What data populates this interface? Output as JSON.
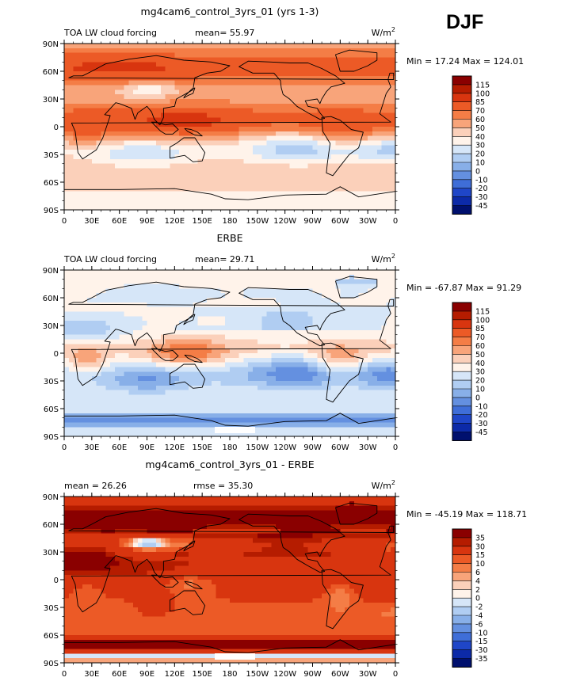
{
  "season": "DJF",
  "chart_data": [
    {
      "type": "heatmap",
      "title": "mg4cam6_control_3yrs_01 (yrs 1-3)",
      "left_label": "TOA LW cloud forcing",
      "center_label": "mean=  55.97",
      "units_label": "W/m2",
      "stats_label": "Min =  17.24 Max = 124.01",
      "mean": 55.97,
      "min": 17.24,
      "max": 124.01,
      "x_ticks": [
        "0",
        "30E",
        "60E",
        "90E",
        "120E",
        "150E",
        "180",
        "150W",
        "120W",
        "90W",
        "60W",
        "30W",
        "0"
      ],
      "y_ticks": [
        "90N",
        "60N",
        "30N",
        "0",
        "30S",
        "60S",
        "90S"
      ],
      "legend_levels": [
        "115",
        "100",
        "85",
        "70",
        "60",
        "50",
        "40",
        "30",
        "20",
        "10",
        "0",
        "-10",
        "-20",
        "-30",
        "-45"
      ],
      "legend_colors": [
        "#8a0000",
        "#b51c00",
        "#d8350f",
        "#ec5a26",
        "#f47d46",
        "#f8a47a",
        "#fbd0ba",
        "#fff3ea",
        "#d6e6f8",
        "#b0cdf2",
        "#88afe8",
        "#6490e0",
        "#3f6ed8",
        "#1f46c8",
        "#0c2aa8",
        "#00106e"
      ],
      "blend": 0,
      "base_value": 55.97
    },
    {
      "type": "heatmap",
      "title": "ERBE",
      "left_label": "TOA LW cloud forcing",
      "center_label": "mean=  29.71",
      "units_label": "W/m2",
      "stats_label": "Min = -67.87 Max =  91.29",
      "mean": 29.71,
      "min": -67.87,
      "max": 91.29,
      "x_ticks": [
        "0",
        "30E",
        "60E",
        "90E",
        "120E",
        "150E",
        "180",
        "150W",
        "120W",
        "90W",
        "60W",
        "30W",
        "0"
      ],
      "y_ticks": [
        "90N",
        "60N",
        "30N",
        "0",
        "30S",
        "60S",
        "90S"
      ],
      "legend_levels": [
        "115",
        "100",
        "85",
        "70",
        "60",
        "50",
        "40",
        "30",
        "20",
        "10",
        "0",
        "-10",
        "-20",
        "-30",
        "-45"
      ],
      "legend_colors": [
        "#8a0000",
        "#b51c00",
        "#d8350f",
        "#ec5a26",
        "#f47d46",
        "#f8a47a",
        "#fbd0ba",
        "#fff3ea",
        "#d6e6f8",
        "#b0cdf2",
        "#88afe8",
        "#6490e0",
        "#3f6ed8",
        "#1f46c8",
        "#0c2aa8",
        "#00106e"
      ],
      "blend": 1,
      "base_value": 29.71
    },
    {
      "type": "heatmap",
      "title": "mg4cam6_control_3yrs_01 - ERBE",
      "left_label": "mean =  26.26",
      "center_label": "rmse =  35.30",
      "units_label": "W/m2",
      "stats_label": "Min = -45.19 Max = 118.71",
      "mean": 26.26,
      "rmse": 35.3,
      "min": -45.19,
      "max": 118.71,
      "x_ticks": [
        "0",
        "30E",
        "60E",
        "90E",
        "120E",
        "150E",
        "180",
        "150W",
        "120W",
        "90W",
        "60W",
        "30W",
        "0"
      ],
      "y_ticks": [
        "90N",
        "60N",
        "30N",
        "0",
        "30S",
        "60S",
        "90S"
      ],
      "legend_levels": [
        "35",
        "30",
        "15",
        "10",
        "6",
        "4",
        "2",
        "0",
        "-2",
        "-4",
        "-6",
        "-10",
        "-15",
        "-30",
        "-35"
      ],
      "legend_colors": [
        "#8a0000",
        "#b51c00",
        "#d8350f",
        "#ec5a26",
        "#f47d46",
        "#f8a47a",
        "#fbd0ba",
        "#fff3ea",
        "#d6e6f8",
        "#b0cdf2",
        "#88afe8",
        "#6490e0",
        "#3f6ed8",
        "#1f46c8",
        "#0c2aa8",
        "#00106e"
      ],
      "blend": 2,
      "base_value": 26.26
    }
  ]
}
